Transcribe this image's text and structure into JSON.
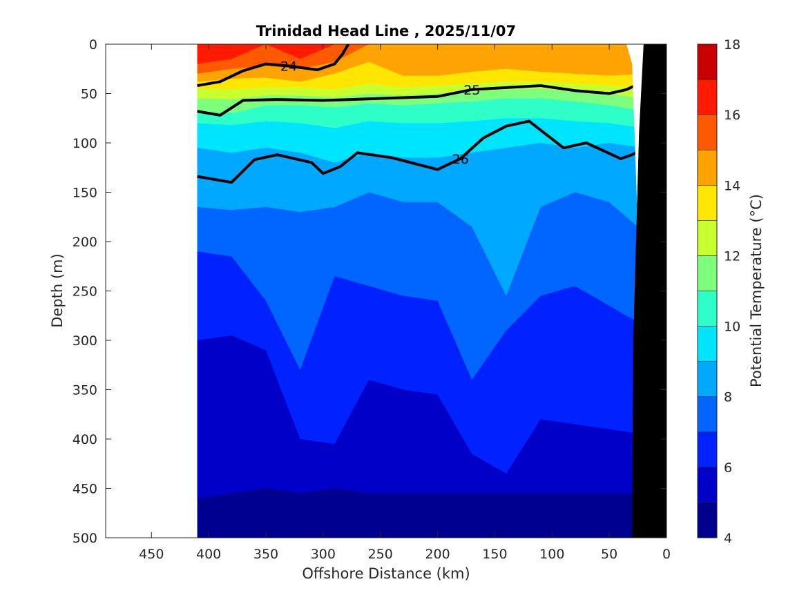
{
  "chart_data": {
    "type": "heatmap",
    "title": "Trinidad Head Line , 2025/11/07",
    "xlabel": "Offshore Distance (km)",
    "ylabel": "Depth (m)",
    "xlim": [
      490,
      0
    ],
    "ylim": [
      0,
      500
    ],
    "x_ticks": [
      "450",
      "400",
      "350",
      "300",
      "250",
      "200",
      "150",
      "100",
      "50",
      "0"
    ],
    "y_ticks": [
      "0",
      "50",
      "100",
      "150",
      "200",
      "250",
      "300",
      "350",
      "400",
      "450",
      "500"
    ],
    "colorbar": {
      "label": "Potential Temperature (°C)",
      "range": [
        4,
        18
      ],
      "ticks": [
        "4",
        "6",
        "8",
        "10",
        "12",
        "14",
        "16",
        "18"
      ],
      "levels": [
        4,
        5,
        6,
        7,
        8,
        9,
        10,
        11,
        12,
        13,
        14,
        15,
        16,
        17,
        18
      ],
      "colors": [
        "#00008f",
        "#0000c8",
        "#0022ff",
        "#0066ff",
        "#00a8ff",
        "#00e5ff",
        "#2effc8",
        "#7dff7d",
        "#c8ff2e",
        "#ffe600",
        "#ffa300",
        "#ff5a00",
        "#ff1a00",
        "#c80000"
      ]
    },
    "data_extent": {
      "x_offshore_start": 410,
      "x_nearshore_end": 20
    },
    "temperature_bands": [
      {
        "level": 5,
        "depth": [
          460,
          455,
          450,
          455,
          450,
          455,
          455,
          455,
          455,
          455,
          455,
          455,
          455,
          455
        ]
      },
      {
        "level": 6,
        "depth": [
          300,
          295,
          310,
          400,
          405,
          340,
          350,
          355,
          415,
          435,
          380,
          385,
          390,
          395
        ]
      },
      {
        "level": 7,
        "depth": [
          210,
          215,
          260,
          330,
          235,
          245,
          255,
          260,
          340,
          290,
          255,
          245,
          265,
          285
        ]
      },
      {
        "level": 8,
        "depth": [
          165,
          168,
          165,
          170,
          165,
          150,
          160,
          160,
          185,
          255,
          165,
          150,
          160,
          190
        ]
      },
      {
        "level": 9,
        "depth": [
          105,
          110,
          105,
          110,
          120,
          110,
          115,
          115,
          110,
          105,
          100,
          105,
          100,
          105
        ]
      },
      {
        "level": 10,
        "depth": [
          80,
          82,
          78,
          80,
          85,
          78,
          80,
          80,
          78,
          75,
          75,
          78,
          80,
          85
        ]
      },
      {
        "level": 11,
        "depth": [
          68,
          70,
          62,
          62,
          64,
          60,
          62,
          60,
          58,
          55,
          55,
          58,
          62,
          68
        ]
      },
      {
        "level": 12,
        "depth": [
          55,
          56,
          52,
          52,
          54,
          50,
          52,
          50,
          48,
          46,
          45,
          48,
          50,
          55
        ]
      },
      {
        "level": 13,
        "depth": [
          45,
          46,
          44,
          44,
          46,
          40,
          44,
          42,
          40,
          38,
          38,
          40,
          42,
          45
        ]
      },
      {
        "level": 14,
        "depth": [
          38,
          35,
          34,
          38,
          30,
          18,
          32,
          32,
          28,
          25,
          28,
          30,
          32,
          30
        ]
      },
      {
        "level": 15,
        "depth": [
          30,
          25,
          22,
          25,
          18,
          0,
          0,
          0,
          0,
          0,
          0,
          0,
          0,
          0
        ]
      },
      {
        "level": 16,
        "depth": [
          20,
          15,
          0,
          15,
          0,
          0,
          0,
          0,
          0,
          0,
          0,
          0,
          0,
          0
        ]
      }
    ],
    "band_x": [
      410,
      380,
      350,
      320,
      290,
      260,
      230,
      200,
      170,
      140,
      110,
      80,
      50,
      20
    ],
    "density_contours": [
      {
        "label": "24",
        "points": [
          [
            410,
            42
          ],
          [
            390,
            38
          ],
          [
            370,
            27
          ],
          [
            350,
            20
          ],
          [
            330,
            22
          ],
          [
            305,
            26
          ],
          [
            290,
            20
          ],
          [
            283,
            10
          ],
          [
            278,
            0
          ]
        ]
      },
      {
        "label": "25",
        "points": [
          [
            410,
            68
          ],
          [
            390,
            72
          ],
          [
            370,
            57
          ],
          [
            340,
            56
          ],
          [
            300,
            57
          ],
          [
            250,
            55
          ],
          [
            200,
            53
          ],
          [
            170,
            46
          ],
          [
            140,
            44
          ],
          [
            110,
            42
          ],
          [
            80,
            47
          ],
          [
            50,
            50
          ],
          [
            35,
            46
          ],
          [
            20,
            38
          ]
        ]
      },
      {
        "label": "26",
        "points": [
          [
            410,
            134
          ],
          [
            380,
            140
          ],
          [
            360,
            117
          ],
          [
            340,
            112
          ],
          [
            310,
            120
          ],
          [
            300,
            131
          ],
          [
            285,
            124
          ],
          [
            270,
            110
          ],
          [
            240,
            115
          ],
          [
            200,
            127
          ],
          [
            180,
            116
          ],
          [
            160,
            95
          ],
          [
            140,
            83
          ],
          [
            120,
            78
          ],
          [
            100,
            96
          ],
          [
            90,
            105
          ],
          [
            70,
            100
          ],
          [
            55,
            108
          ],
          [
            40,
            116
          ],
          [
            30,
            112
          ],
          [
            20,
            106
          ]
        ]
      }
    ]
  }
}
